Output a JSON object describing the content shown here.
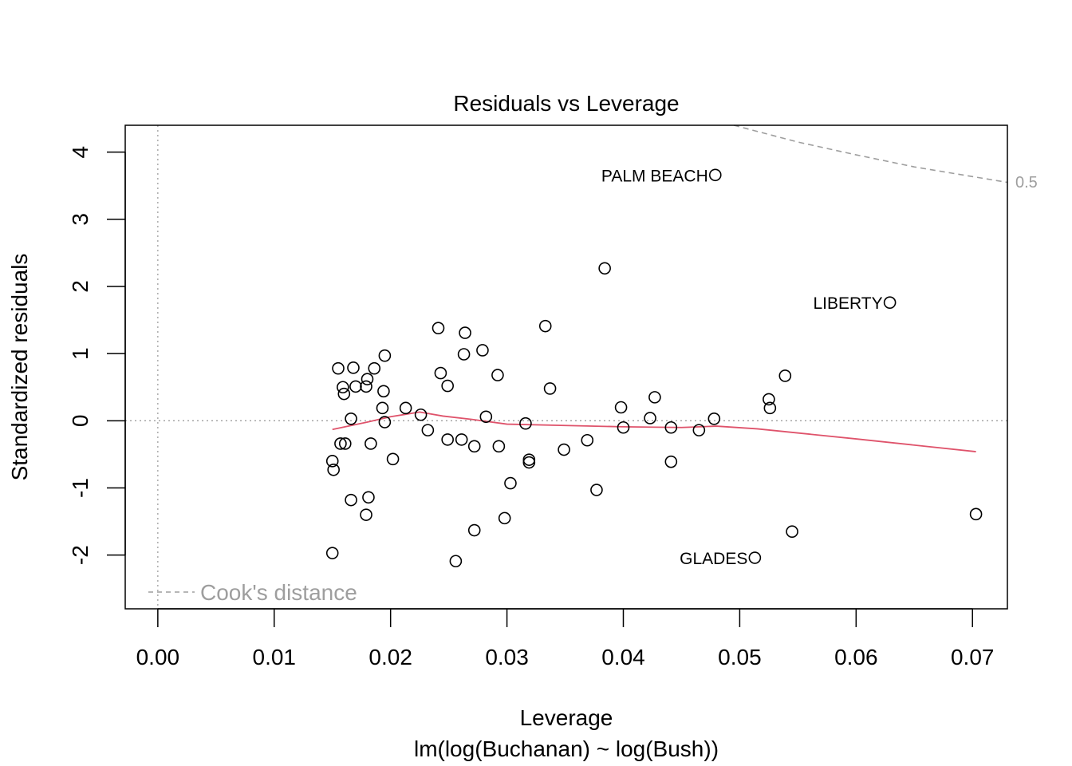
{
  "chart_data": {
    "type": "scatter",
    "title": "Residuals vs Leverage",
    "xlabel": "Leverage",
    "subtitle": "lm(log(Buchanan) ~ log(Bush))",
    "ylabel": "Standardized residuals",
    "xlim": [
      -0.0028,
      0.073
    ],
    "ylim": [
      -2.8,
      4.4
    ],
    "x_ticks": [
      "0.00",
      "0.01",
      "0.02",
      "0.03",
      "0.04",
      "0.05",
      "0.06",
      "0.07"
    ],
    "y_ticks": [
      "-2",
      "-1",
      "0",
      "1",
      "2",
      "3",
      "4"
    ],
    "legend": {
      "label": "Cook's distance",
      "position": "bottom-left"
    },
    "cooks_contour": {
      "label": "0.5",
      "points": [
        [
          0.0495,
          4.4
        ],
        [
          0.055,
          4.15
        ],
        [
          0.06,
          3.96
        ],
        [
          0.065,
          3.78
        ],
        [
          0.073,
          3.55
        ]
      ]
    },
    "reference_lines": {
      "h": 0,
      "v": 0
    },
    "points": [
      {
        "x": 0.015,
        "y": -0.6
      },
      {
        "x": 0.0151,
        "y": -0.73
      },
      {
        "x": 0.015,
        "y": -1.97
      },
      {
        "x": 0.0155,
        "y": 0.78
      },
      {
        "x": 0.0157,
        "y": -0.34
      },
      {
        "x": 0.0159,
        "y": 0.5
      },
      {
        "x": 0.016,
        "y": 0.4
      },
      {
        "x": 0.0161,
        "y": -0.34
      },
      {
        "x": 0.0166,
        "y": 0.03
      },
      {
        "x": 0.0166,
        "y": -1.18
      },
      {
        "x": 0.0168,
        "y": 0.79
      },
      {
        "x": 0.017,
        "y": 0.51
      },
      {
        "x": 0.0179,
        "y": 0.51
      },
      {
        "x": 0.018,
        "y": 0.62
      },
      {
        "x": 0.0179,
        "y": -1.4
      },
      {
        "x": 0.0181,
        "y": -1.14
      },
      {
        "x": 0.0183,
        "y": -0.34
      },
      {
        "x": 0.0186,
        "y": 0.78
      },
      {
        "x": 0.0193,
        "y": 0.19
      },
      {
        "x": 0.0194,
        "y": 0.44
      },
      {
        "x": 0.0195,
        "y": 0.97
      },
      {
        "x": 0.0195,
        "y": -0.02
      },
      {
        "x": 0.0202,
        "y": -0.57
      },
      {
        "x": 0.0213,
        "y": 0.19
      },
      {
        "x": 0.0226,
        "y": 0.09
      },
      {
        "x": 0.0232,
        "y": -0.14
      },
      {
        "x": 0.0241,
        "y": 1.38
      },
      {
        "x": 0.0243,
        "y": 0.71
      },
      {
        "x": 0.0249,
        "y": 0.52
      },
      {
        "x": 0.0249,
        "y": -0.28
      },
      {
        "x": 0.0256,
        "y": -2.09
      },
      {
        "x": 0.0261,
        "y": -0.28
      },
      {
        "x": 0.0263,
        "y": 0.99
      },
      {
        "x": 0.0264,
        "y": 1.31
      },
      {
        "x": 0.0272,
        "y": -0.38
      },
      {
        "x": 0.0272,
        "y": -1.63
      },
      {
        "x": 0.0279,
        "y": 1.05
      },
      {
        "x": 0.0282,
        "y": 0.06
      },
      {
        "x": 0.0292,
        "y": 0.68
      },
      {
        "x": 0.0293,
        "y": -0.38
      },
      {
        "x": 0.0298,
        "y": -1.45
      },
      {
        "x": 0.0303,
        "y": -0.93
      },
      {
        "x": 0.0316,
        "y": -0.04
      },
      {
        "x": 0.0319,
        "y": -0.58
      },
      {
        "x": 0.0319,
        "y": -0.62
      },
      {
        "x": 0.0333,
        "y": 1.41
      },
      {
        "x": 0.0337,
        "y": 0.48
      },
      {
        "x": 0.0349,
        "y": -0.43
      },
      {
        "x": 0.0369,
        "y": -0.29
      },
      {
        "x": 0.0377,
        "y": -1.03
      },
      {
        "x": 0.0384,
        "y": 2.27
      },
      {
        "x": 0.0398,
        "y": 0.2
      },
      {
        "x": 0.04,
        "y": -0.1
      },
      {
        "x": 0.0423,
        "y": 0.04
      },
      {
        "x": 0.0427,
        "y": 0.35
      },
      {
        "x": 0.0441,
        "y": -0.1
      },
      {
        "x": 0.0441,
        "y": -0.61
      },
      {
        "x": 0.0465,
        "y": -0.14
      },
      {
        "x": 0.0478,
        "y": 0.03
      },
      {
        "x": 0.0479,
        "y": 3.66
      },
      {
        "x": 0.0513,
        "y": -2.04
      },
      {
        "x": 0.0525,
        "y": 0.32
      },
      {
        "x": 0.0526,
        "y": 0.19
      },
      {
        "x": 0.0539,
        "y": 0.67
      },
      {
        "x": 0.0545,
        "y": -1.65
      },
      {
        "x": 0.0629,
        "y": 1.76
      },
      {
        "x": 0.0703,
        "y": -1.39
      }
    ],
    "labeled_points": [
      {
        "label": "PALM BEACH",
        "x": 0.0479,
        "y": 3.66
      },
      {
        "label": "LIBERTY",
        "x": 0.0629,
        "y": 1.76
      },
      {
        "label": "GLADES",
        "x": 0.0513,
        "y": -2.04
      }
    ],
    "smooth_line": [
      [
        0.015,
        -0.13
      ],
      [
        0.018,
        -0.02
      ],
      [
        0.02,
        0.06
      ],
      [
        0.0225,
        0.13
      ],
      [
        0.0245,
        0.07
      ],
      [
        0.027,
        0.02
      ],
      [
        0.03,
        -0.05
      ],
      [
        0.035,
        -0.07
      ],
      [
        0.04,
        -0.09
      ],
      [
        0.045,
        -0.1
      ],
      [
        0.048,
        -0.08
      ],
      [
        0.0515,
        -0.12
      ],
      [
        0.06,
        -0.27
      ],
      [
        0.0703,
        -0.46
      ]
    ],
    "colors": {
      "points": "#000000",
      "smooth": "#DF536B",
      "reference": "#9E9E9E",
      "cooks": "#9E9E9E"
    }
  }
}
